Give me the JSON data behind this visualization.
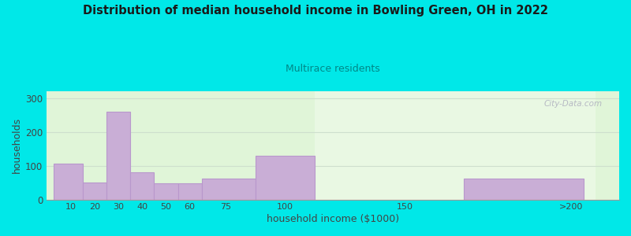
{
  "title": "Distribution of median household income in Bowling Green, OH in 2022",
  "subtitle": "Multirace residents",
  "xlabel": "household income ($1000)",
  "ylabel": "households",
  "bar_lefts": [
    3,
    15,
    25,
    35,
    45,
    55,
    65,
    87.5,
    112.5,
    175
  ],
  "bar_widths": [
    12,
    10,
    10,
    10,
    10,
    10,
    22.5,
    25,
    25,
    50
  ],
  "bar_values": [
    105,
    50,
    260,
    80,
    48,
    48,
    63,
    130,
    0,
    63
  ],
  "xtick_positions": [
    10,
    20,
    30,
    40,
    50,
    60,
    75,
    100,
    150,
    220
  ],
  "xtick_labels": [
    "10",
    "20",
    "30",
    "40",
    "50",
    "60",
    "75",
    "100",
    "150",
    ">200"
  ],
  "bar_color": "#c9aed6",
  "bar_edge_color": "#b898cc",
  "ylim": [
    0,
    320
  ],
  "yticks": [
    0,
    100,
    200,
    300
  ],
  "xlim": [
    0,
    240
  ],
  "bg_color": "#00e8e8",
  "plot_bg_left": "#e0f5d8",
  "plot_bg_right": "#f0ecf5",
  "title_color": "#1a1a1a",
  "subtitle_color": "#008888",
  "axis_label_color": "#444444",
  "tick_color": "#444444",
  "watermark_text": "City-Data.com",
  "watermark_color": "#aaaabc",
  "grid_color": "#ccddcc"
}
